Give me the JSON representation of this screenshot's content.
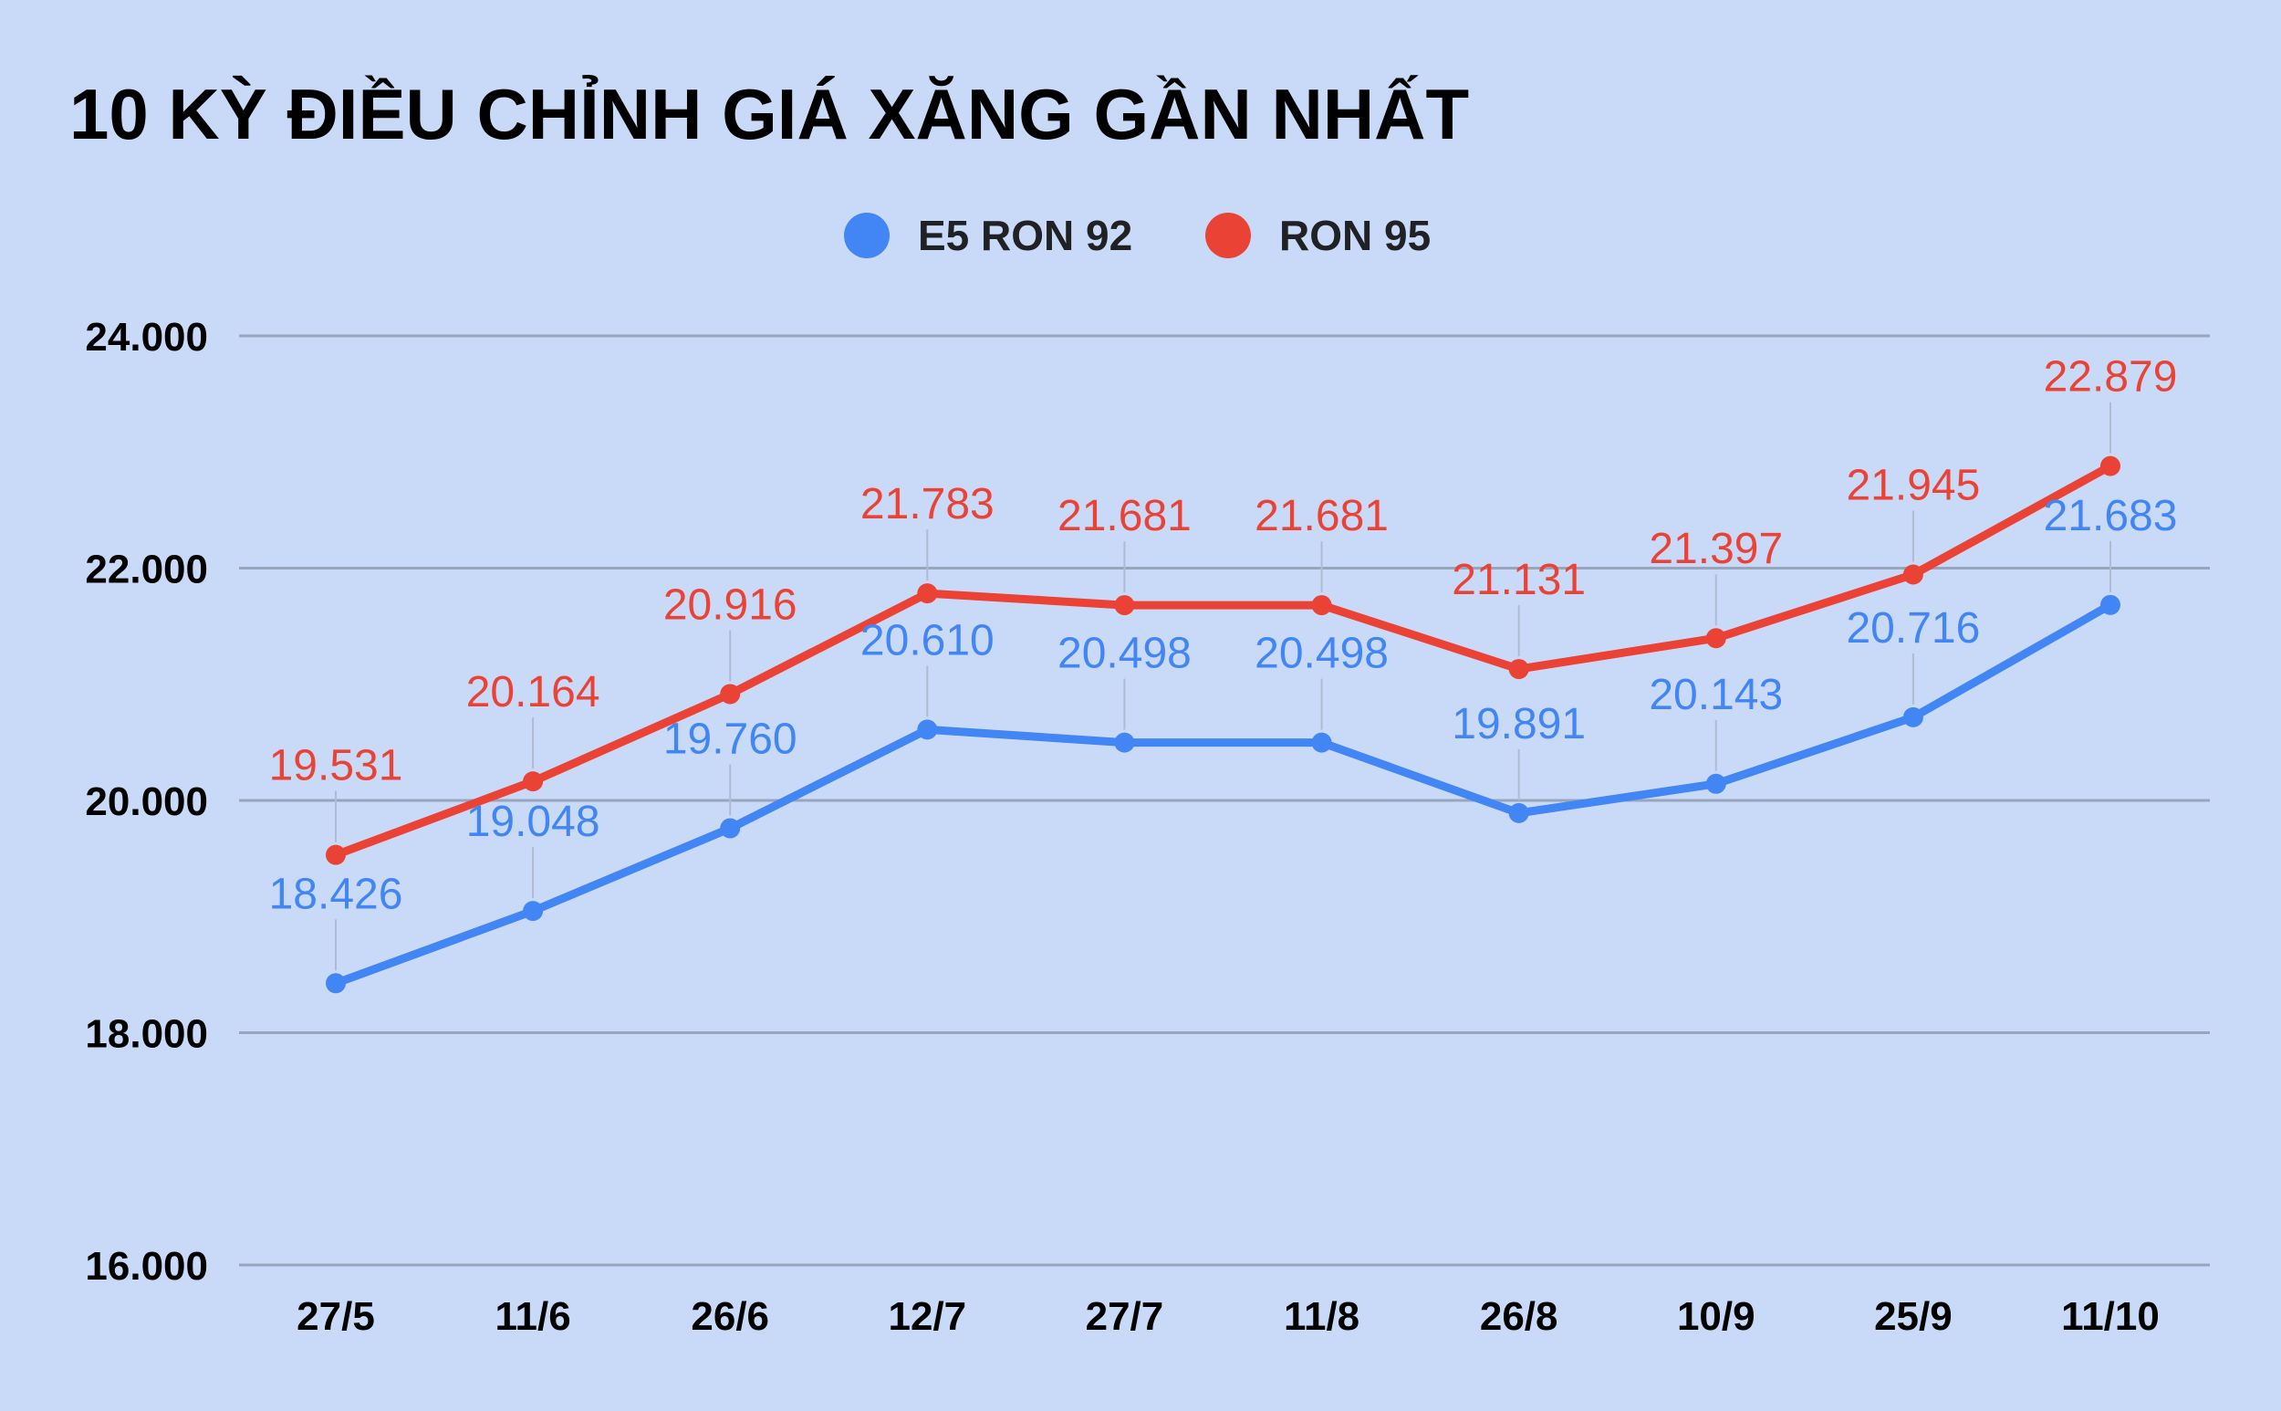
{
  "chart_data": {
    "type": "line",
    "title": "10 KỲ ĐIỀU CHỈNH GIÁ XĂNG GẦN NHẤT",
    "xlabel": "",
    "ylabel": "",
    "categories": [
      "27/5",
      "11/6",
      "26/6",
      "12/7",
      "27/7",
      "11/8",
      "26/8",
      "10/9",
      "25/9",
      "11/10"
    ],
    "series": [
      {
        "name": "E5 RON 92",
        "color": "#4285f4",
        "values": [
          18426,
          19048,
          19760,
          20610,
          20498,
          20498,
          19891,
          20143,
          20716,
          21683
        ],
        "labels": [
          "18.426",
          "19.048",
          "19.760",
          "20.610",
          "20.498",
          "20.498",
          "19.891",
          "20.143",
          "20.716",
          "21.683"
        ]
      },
      {
        "name": "RON 95",
        "color": "#ea4335",
        "values": [
          19531,
          20164,
          20916,
          21783,
          21681,
          21681,
          21131,
          21397,
          21945,
          22879
        ],
        "labels": [
          "19.531",
          "20.164",
          "20.916",
          "21.783",
          "21.681",
          "21.681",
          "21.131",
          "21.397",
          "21.945",
          "22.879"
        ]
      }
    ],
    "ylim": [
      16000,
      24000
    ],
    "yticks": [
      16000,
      18000,
      20000,
      22000,
      24000
    ],
    "ytick_labels": [
      "16.000",
      "18.000",
      "20.000",
      "22.000",
      "24.000"
    ],
    "grid": true,
    "legend": "top-center"
  },
  "colors": {
    "background": "#c9daf8",
    "grid": "#98a6bd",
    "leader": "#aebbd2"
  }
}
